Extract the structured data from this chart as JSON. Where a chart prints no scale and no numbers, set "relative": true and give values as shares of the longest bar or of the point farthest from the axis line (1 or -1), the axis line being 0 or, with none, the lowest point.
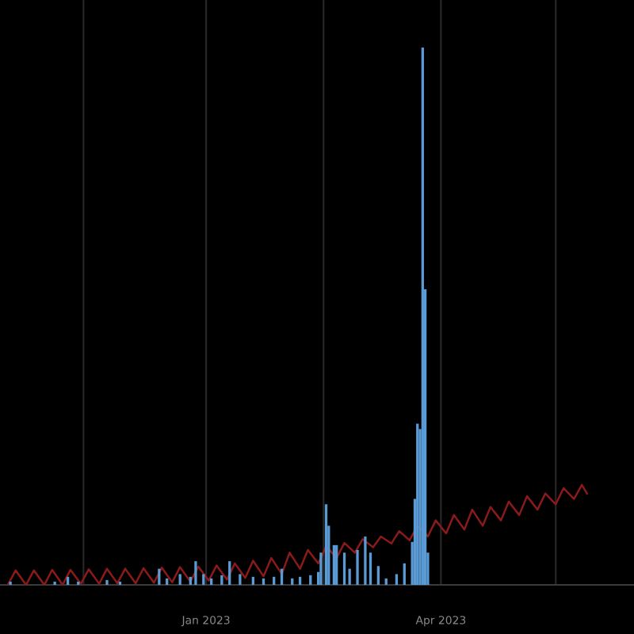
{
  "chart_data": {
    "type": "bar",
    "relative": true,
    "grid": "x",
    "xlim": [
      "2022-10-14",
      "2023-06-14"
    ],
    "xticks": [
      {
        "value": "2022-11-15",
        "label": null
      },
      {
        "value": "2023-01-01",
        "label": "Jan 2023"
      },
      {
        "value": "2023-02-15",
        "label": null
      },
      {
        "value": "2023-04-01",
        "label": "Apr 2023"
      },
      {
        "value": "2023-05-15",
        "label": null
      }
    ],
    "series": [
      {
        "color": "#5b9bd5",
        "x": [
          "2022-10-18",
          "2022-11-04",
          "2022-11-09",
          "2022-11-13",
          "2022-11-24",
          "2022-11-29",
          "2022-12-14",
          "2022-12-17",
          "2022-12-22",
          "2022-12-26",
          "2022-12-28",
          "2022-12-31",
          "2023-01-03",
          "2023-01-07",
          "2023-01-10",
          "2023-01-14",
          "2023-01-19",
          "2023-01-23",
          "2023-01-27",
          "2023-01-30",
          "2023-02-03",
          "2023-02-06",
          "2023-02-10",
          "2023-02-13",
          "2023-02-14",
          "2023-02-16",
          "2023-02-17",
          "2023-02-19",
          "2023-02-20",
          "2023-02-23",
          "2023-02-25",
          "2023-02-28",
          "2023-03-03",
          "2023-03-05",
          "2023-03-08",
          "2023-03-11",
          "2023-03-15",
          "2023-03-18",
          "2023-03-21",
          "2023-03-22",
          "2023-03-23",
          "2023-03-24",
          "2023-03-25",
          "2023-03-26",
          "2023-03-27"
        ],
        "values": [
          0.006,
          0.006,
          0.015,
          0.006,
          0.009,
          0.006,
          0.03,
          0.012,
          0.02,
          0.015,
          0.044,
          0.02,
          0.012,
          0.018,
          0.044,
          0.02,
          0.015,
          0.012,
          0.015,
          0.03,
          0.012,
          0.015,
          0.018,
          0.024,
          0.06,
          0.15,
          0.11,
          0.074,
          0.074,
          0.06,
          0.03,
          0.065,
          0.09,
          0.06,
          0.035,
          0.012,
          0.02,
          0.04,
          0.08,
          0.16,
          0.3,
          0.29,
          1.0,
          0.55,
          0.06
        ]
      },
      {
        "type": "line",
        "color": "#8b1a1a",
        "line_style": "solid",
        "x": [
          "2022-10-17",
          "2022-10-20",
          "2022-10-24",
          "2022-10-27",
          "2022-10-31",
          "2022-11-03",
          "2022-11-07",
          "2022-11-10",
          "2022-11-14",
          "2022-11-17",
          "2022-11-21",
          "2022-11-24",
          "2022-11-28",
          "2022-12-01",
          "2022-12-05",
          "2022-12-08",
          "2022-12-12",
          "2022-12-15",
          "2022-12-19",
          "2022-12-22",
          "2022-12-26",
          "2022-12-29",
          "2023-01-02",
          "2023-01-05",
          "2023-01-09",
          "2023-01-12",
          "2023-01-16",
          "2023-01-19",
          "2023-01-23",
          "2023-01-26",
          "2023-01-30",
          "2023-02-02",
          "2023-02-06",
          "2023-02-09",
          "2023-02-13",
          "2023-02-16",
          "2023-02-20",
          "2023-02-23",
          "2023-02-27",
          "2023-03-02",
          "2023-03-06",
          "2023-03-09",
          "2023-03-13",
          "2023-03-16",
          "2023-03-20",
          "2023-03-23",
          "2023-03-27",
          "2023-03-30",
          "2023-04-03",
          "2023-04-06",
          "2023-04-10",
          "2023-04-13",
          "2023-04-17",
          "2023-04-20",
          "2023-04-24",
          "2023-04-27",
          "2023-05-01",
          "2023-05-04",
          "2023-05-08",
          "2023-05-11",
          "2023-05-15",
          "2023-05-18",
          "2023-05-22",
          "2023-05-25",
          "2023-05-27"
        ],
        "values": [
          0,
          0.027,
          0,
          0.027,
          0,
          0.028,
          0,
          0.028,
          0.002,
          0.029,
          0.002,
          0.03,
          0.003,
          0.03,
          0.003,
          0.031,
          0.004,
          0.032,
          0.005,
          0.033,
          0.006,
          0.034,
          0.008,
          0.036,
          0.01,
          0.04,
          0.013,
          0.045,
          0.016,
          0.05,
          0.02,
          0.06,
          0.03,
          0.065,
          0.04,
          0.072,
          0.05,
          0.078,
          0.06,
          0.085,
          0.07,
          0.09,
          0.077,
          0.1,
          0.083,
          0.11,
          0.09,
          0.12,
          0.096,
          0.13,
          0.103,
          0.14,
          0.11,
          0.145,
          0.12,
          0.155,
          0.13,
          0.165,
          0.14,
          0.17,
          0.15,
          0.18,
          0.16,
          0.186,
          0.17
        ]
      }
    ]
  }
}
